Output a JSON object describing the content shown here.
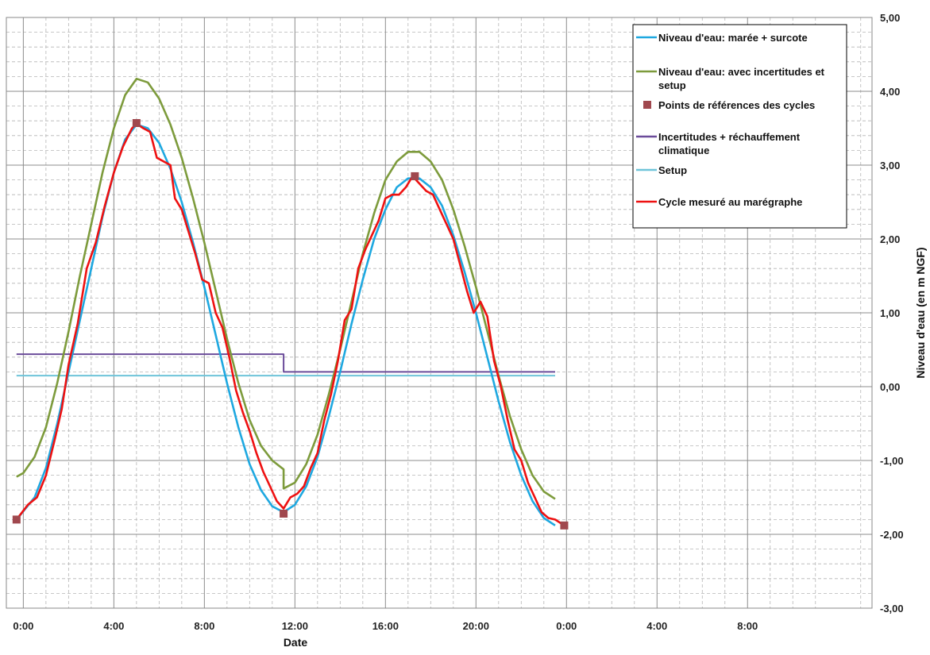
{
  "chart_data": {
    "type": "line",
    "xlabel": "Date",
    "ylabel": "Niveau d'eau (en m NGF)",
    "x_unit": "hours",
    "xlim": [
      -0.75,
      37.5
    ],
    "ylim": [
      -3,
      5
    ],
    "x_ticks": [
      {
        "x": 0,
        "label": "0:00"
      },
      {
        "x": 4,
        "label": "4:00"
      },
      {
        "x": 8,
        "label": "8:00"
      },
      {
        "x": 12,
        "label": "12:00"
      },
      {
        "x": 16,
        "label": "16:00"
      },
      {
        "x": 20,
        "label": "20:00"
      },
      {
        "x": 24,
        "label": "0:00"
      },
      {
        "x": 28,
        "label": "4:00"
      },
      {
        "x": 32,
        "label": "8:00"
      }
    ],
    "y_ticks": [
      {
        "y": 5,
        "label": "5,00"
      },
      {
        "y": 4,
        "label": "4,00"
      },
      {
        "y": 3,
        "label": "3,00"
      },
      {
        "y": 2,
        "label": "2,00"
      },
      {
        "y": 1,
        "label": "1,00"
      },
      {
        "y": 0,
        "label": "0,00"
      },
      {
        "y": -1,
        "label": "-1,00"
      },
      {
        "y": -2,
        "label": "-2,00"
      },
      {
        "y": -3,
        "label": "-3,00"
      }
    ],
    "grid": true,
    "y_axis_side": "right",
    "legend_position": "top-right",
    "series": [
      {
        "name": "Niveau d'eau: marée + surcote",
        "color": "#1ea8e0",
        "kind": "line",
        "points": [
          [
            -0.3,
            -1.8
          ],
          [
            0.5,
            -1.5
          ],
          [
            1,
            -1.1
          ],
          [
            1.5,
            -0.5
          ],
          [
            2,
            0.2
          ],
          [
            2.5,
            0.9
          ],
          [
            3,
            1.6
          ],
          [
            3.5,
            2.3
          ],
          [
            4,
            2.9
          ],
          [
            4.5,
            3.35
          ],
          [
            5,
            3.55
          ],
          [
            5.5,
            3.5
          ],
          [
            6,
            3.3
          ],
          [
            6.5,
            2.95
          ],
          [
            7,
            2.5
          ],
          [
            7.5,
            1.95
          ],
          [
            8,
            1.35
          ],
          [
            8.5,
            0.7
          ],
          [
            9,
            0.05
          ],
          [
            9.5,
            -0.55
          ],
          [
            10,
            -1.05
          ],
          [
            10.5,
            -1.4
          ],
          [
            11,
            -1.62
          ],
          [
            11.5,
            -1.7
          ],
          [
            12,
            -1.6
          ],
          [
            12.5,
            -1.35
          ],
          [
            13,
            -0.95
          ],
          [
            13.5,
            -0.4
          ],
          [
            14,
            0.2
          ],
          [
            14.5,
            0.85
          ],
          [
            15,
            1.45
          ],
          [
            15.5,
            2.0
          ],
          [
            16,
            2.4
          ],
          [
            16.5,
            2.7
          ],
          [
            17,
            2.82
          ],
          [
            17.5,
            2.82
          ],
          [
            18,
            2.7
          ],
          [
            18.5,
            2.45
          ],
          [
            19,
            2.05
          ],
          [
            19.5,
            1.55
          ],
          [
            20,
            1.0
          ],
          [
            20.5,
            0.4
          ],
          [
            21,
            -0.2
          ],
          [
            21.5,
            -0.75
          ],
          [
            22,
            -1.2
          ],
          [
            22.5,
            -1.55
          ],
          [
            23,
            -1.78
          ],
          [
            23.5,
            -1.88
          ]
        ]
      },
      {
        "name": "Niveau d'eau: avec incertitudes et setup",
        "color": "#7d9b3c",
        "kind": "line",
        "points": [
          [
            -0.3,
            -1.22
          ],
          [
            0,
            -1.17
          ],
          [
            0.5,
            -0.95
          ],
          [
            1,
            -0.55
          ],
          [
            1.5,
            0.05
          ],
          [
            2,
            0.75
          ],
          [
            2.5,
            1.5
          ],
          [
            3,
            2.2
          ],
          [
            3.5,
            2.9
          ],
          [
            4,
            3.5
          ],
          [
            4.5,
            3.95
          ],
          [
            5,
            4.17
          ],
          [
            5.5,
            4.12
          ],
          [
            6,
            3.9
          ],
          [
            6.5,
            3.55
          ],
          [
            7,
            3.1
          ],
          [
            7.5,
            2.55
          ],
          [
            8,
            1.95
          ],
          [
            8.5,
            1.3
          ],
          [
            9,
            0.65
          ],
          [
            9.5,
            0.05
          ],
          [
            10,
            -0.45
          ],
          [
            10.5,
            -0.8
          ],
          [
            11,
            -1.0
          ],
          [
            11.5,
            -1.12
          ],
          [
            11.5,
            -1.38
          ],
          [
            12,
            -1.3
          ],
          [
            12.5,
            -1.05
          ],
          [
            13,
            -0.65
          ],
          [
            13.5,
            -0.1
          ],
          [
            14,
            0.5
          ],
          [
            14.5,
            1.15
          ],
          [
            15,
            1.8
          ],
          [
            15.5,
            2.35
          ],
          [
            16,
            2.8
          ],
          [
            16.5,
            3.05
          ],
          [
            17,
            3.18
          ],
          [
            17.5,
            3.18
          ],
          [
            18,
            3.05
          ],
          [
            18.5,
            2.8
          ],
          [
            19,
            2.4
          ],
          [
            19.5,
            1.9
          ],
          [
            20,
            1.35
          ],
          [
            20.5,
            0.75
          ],
          [
            21,
            0.15
          ],
          [
            21.5,
            -0.4
          ],
          [
            22,
            -0.85
          ],
          [
            22.5,
            -1.2
          ],
          [
            23,
            -1.42
          ],
          [
            23.5,
            -1.52
          ]
        ]
      },
      {
        "name": "Points de références des cycles",
        "color": "#a0484e",
        "kind": "markers",
        "points": [
          [
            -0.3,
            -1.8
          ],
          [
            5,
            3.57
          ],
          [
            11.5,
            -1.72
          ],
          [
            17.3,
            2.85
          ],
          [
            23.9,
            -1.88
          ]
        ]
      },
      {
        "name": "Incertitudes + réchauffement climatique",
        "color": "#6b4c9a",
        "kind": "line",
        "points": [
          [
            -0.3,
            0.44
          ],
          [
            11.5,
            0.44
          ],
          [
            11.5,
            0.2
          ],
          [
            23.5,
            0.2
          ]
        ]
      },
      {
        "name": "Setup",
        "color": "#6fc4d9",
        "kind": "line",
        "points": [
          [
            -0.3,
            0.15
          ],
          [
            23.5,
            0.15
          ]
        ]
      },
      {
        "name": "Cycle mesuré au marégraphe",
        "color": "#ee1111",
        "kind": "line",
        "points": [
          [
            -0.3,
            -1.8
          ],
          [
            0.2,
            -1.6
          ],
          [
            0.6,
            -1.5
          ],
          [
            1.0,
            -1.2
          ],
          [
            1.4,
            -0.7
          ],
          [
            1.7,
            -0.3
          ],
          [
            2.0,
            0.3
          ],
          [
            2.4,
            0.85
          ],
          [
            2.8,
            1.6
          ],
          [
            3.2,
            1.95
          ],
          [
            3.6,
            2.45
          ],
          [
            4.0,
            2.9
          ],
          [
            4.4,
            3.25
          ],
          [
            4.8,
            3.5
          ],
          [
            5.0,
            3.56
          ],
          [
            5.3,
            3.5
          ],
          [
            5.6,
            3.45
          ],
          [
            5.9,
            3.1
          ],
          [
            6.2,
            3.05
          ],
          [
            6.5,
            3.0
          ],
          [
            6.7,
            2.55
          ],
          [
            7.0,
            2.4
          ],
          [
            7.3,
            2.1
          ],
          [
            7.6,
            1.8
          ],
          [
            7.9,
            1.45
          ],
          [
            8.2,
            1.4
          ],
          [
            8.5,
            1.0
          ],
          [
            8.8,
            0.8
          ],
          [
            9.1,
            0.4
          ],
          [
            9.4,
            -0.05
          ],
          [
            9.7,
            -0.35
          ],
          [
            10.0,
            -0.6
          ],
          [
            10.3,
            -0.9
          ],
          [
            10.6,
            -1.15
          ],
          [
            10.9,
            -1.35
          ],
          [
            11.2,
            -1.55
          ],
          [
            11.5,
            -1.65
          ],
          [
            11.8,
            -1.5
          ],
          [
            12.1,
            -1.45
          ],
          [
            12.4,
            -1.35
          ],
          [
            12.7,
            -1.1
          ],
          [
            13.0,
            -0.9
          ],
          [
            13.3,
            -0.45
          ],
          [
            13.6,
            -0.1
          ],
          [
            13.9,
            0.35
          ],
          [
            14.2,
            0.9
          ],
          [
            14.5,
            1.05
          ],
          [
            14.8,
            1.6
          ],
          [
            15.1,
            1.85
          ],
          [
            15.4,
            2.05
          ],
          [
            15.7,
            2.25
          ],
          [
            16.0,
            2.55
          ],
          [
            16.3,
            2.6
          ],
          [
            16.6,
            2.6
          ],
          [
            16.9,
            2.7
          ],
          [
            17.2,
            2.85
          ],
          [
            17.5,
            2.75
          ],
          [
            17.8,
            2.65
          ],
          [
            18.1,
            2.6
          ],
          [
            18.4,
            2.4
          ],
          [
            18.7,
            2.2
          ],
          [
            19.0,
            2.0
          ],
          [
            19.3,
            1.65
          ],
          [
            19.6,
            1.3
          ],
          [
            19.9,
            1.0
          ],
          [
            20.2,
            1.15
          ],
          [
            20.5,
            0.95
          ],
          [
            20.8,
            0.35
          ],
          [
            21.1,
            0.0
          ],
          [
            21.4,
            -0.45
          ],
          [
            21.7,
            -0.85
          ],
          [
            22.0,
            -1.0
          ],
          [
            22.3,
            -1.3
          ],
          [
            22.6,
            -1.5
          ],
          [
            22.9,
            -1.7
          ],
          [
            23.2,
            -1.78
          ],
          [
            23.5,
            -1.8
          ],
          [
            23.9,
            -1.88
          ]
        ]
      }
    ]
  }
}
